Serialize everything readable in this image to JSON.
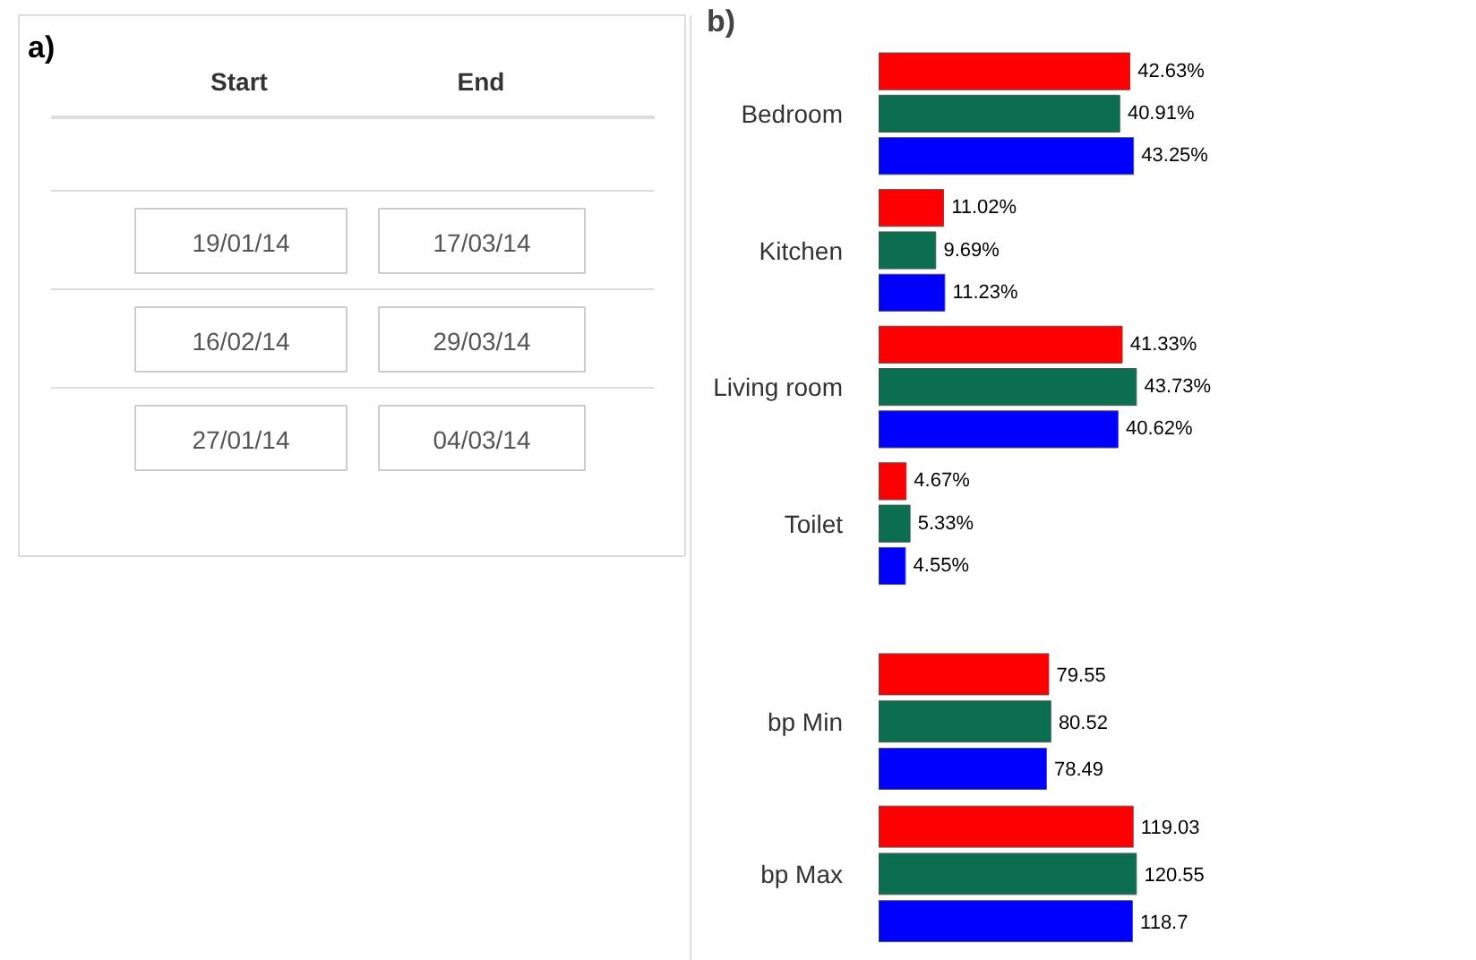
{
  "chart_data": [
    {
      "type": "other",
      "title": "a)",
      "categories": [
        "Start",
        "End"
      ],
      "annotations": [
        "19/01/14",
        "17/03/14",
        "16/02/14",
        "29/03/14",
        "27/01/14",
        "04/03/14"
      ]
    },
    {
      "type": "bar",
      "orientation": "horizontal",
      "title": "b)",
      "categories": [
        "Bedroom",
        "Kitchen",
        "Living room",
        "Toilet"
      ],
      "series": [
        {
          "color": "#ff0000",
          "values": [
            42.63,
            11.02,
            41.33,
            4.67
          ],
          "value_labels": [
            "42.63%",
            "11.02%",
            "41.33%",
            "4.67%"
          ]
        },
        {
          "color": "#0b6e4f",
          "values": [
            40.91,
            9.69,
            43.73,
            5.33
          ],
          "value_labels": [
            "40.91%",
            "9.69%",
            "43.73%",
            "5.33%"
          ]
        },
        {
          "color": "#0000ff",
          "values": [
            43.25,
            11.23,
            40.62,
            4.55
          ],
          "value_labels": [
            "43.25%",
            "11.23%",
            "40.62%",
            "4.55%"
          ]
        }
      ]
    },
    {
      "type": "bar",
      "orientation": "horizontal",
      "categories": [
        "bp Min",
        "bp Max"
      ],
      "data_labels": true,
      "series": [
        {
          "color": "#ff0000",
          "values": [
            79.55,
            119.03
          ]
        },
        {
          "color": "#0b6e4f",
          "values": [
            80.52,
            120.55
          ]
        },
        {
          "color": "#0000ff",
          "values": [
            78.49,
            118.7
          ]
        }
      ]
    }
  ]
}
